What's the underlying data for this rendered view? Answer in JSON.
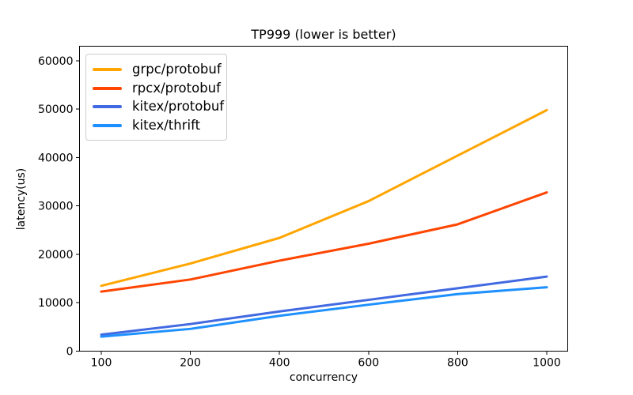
{
  "chart_data": {
    "type": "line",
    "title": "TP999 (lower is better)",
    "xlabel": "concurrency",
    "ylabel": "latency(us)",
    "categories": [
      100,
      200,
      400,
      600,
      800,
      1000
    ],
    "series": [
      {
        "name": "grpc/protobuf",
        "color": "#FFA500",
        "values": [
          13500,
          18100,
          23400,
          31000,
          40400,
          49800
        ]
      },
      {
        "name": "rpcx/protobuf",
        "color": "#FF4500",
        "values": [
          12300,
          14800,
          18700,
          22200,
          26200,
          32800
        ]
      },
      {
        "name": "kitex/protobuf",
        "color": "#4169E1",
        "values": [
          3400,
          5600,
          8200,
          10600,
          13000,
          15400
        ]
      },
      {
        "name": "kitex/thrift",
        "color": "#1E90FF",
        "values": [
          3000,
          4600,
          7300,
          9600,
          11800,
          13200
        ]
      }
    ],
    "yticks": [
      0,
      10000,
      20000,
      30000,
      40000,
      50000,
      60000
    ],
    "ylim": [
      0,
      63000
    ],
    "legend_position": "upper left",
    "grid": false,
    "axis_color": "#000000",
    "background_color": "#ffffff"
  }
}
